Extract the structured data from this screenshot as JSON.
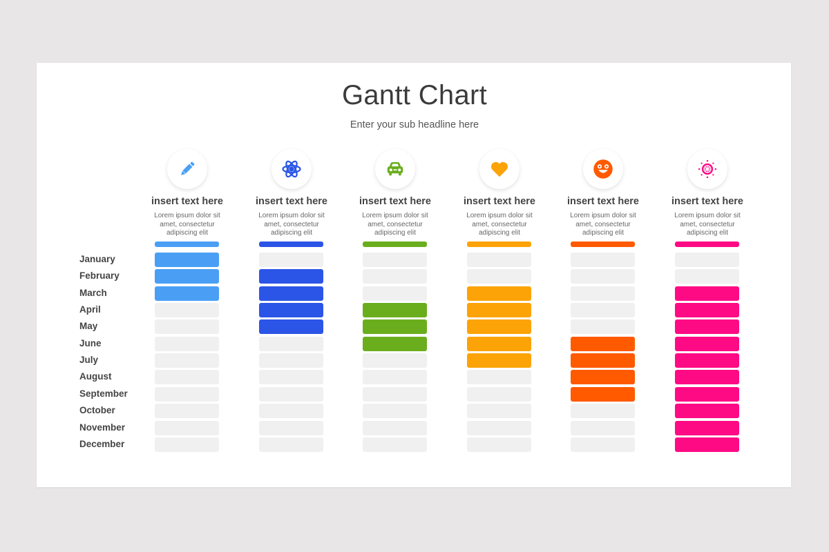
{
  "header": {
    "title": "Gantt Chart",
    "subtitle": "Enter your sub headline here"
  },
  "months": [
    "January",
    "February",
    "March",
    "April",
    "May",
    "June",
    "July",
    "August",
    "September",
    "October",
    "November",
    "December"
  ],
  "tasks": [
    {
      "icon": "pencil-icon",
      "title": "insert text here",
      "desc": [
        "Lorem ipsum dolor sit",
        "amet, consectetur",
        "adipiscing elit"
      ],
      "color": "#4a9ff5",
      "start": 0,
      "end": 2
    },
    {
      "icon": "atom-icon",
      "title": "insert text here",
      "desc": [
        "Lorem ipsum dolor sit",
        "amet, consectetur",
        "adipiscing elit"
      ],
      "color": "#2b55e6",
      "start": 1,
      "end": 4
    },
    {
      "icon": "car-icon",
      "title": "insert text here",
      "desc": [
        "Lorem ipsum dolor sit",
        "amet, consectetur",
        "adipiscing elit"
      ],
      "color": "#6aae1e",
      "start": 3,
      "end": 5
    },
    {
      "icon": "heart-icon",
      "title": "insert text here",
      "desc": [
        "Lorem ipsum dolor sit",
        "amet, consectetur",
        "adipiscing elit"
      ],
      "color": "#fca308",
      "start": 2,
      "end": 6
    },
    {
      "icon": "smiley-icon",
      "title": "insert text here",
      "desc": [
        "Lorem ipsum dolor sit",
        "amet, consectetur",
        "adipiscing elit"
      ],
      "color": "#ff5a00",
      "start": 5,
      "end": 8
    },
    {
      "icon": "ship-wheel-icon",
      "title": "insert text here",
      "desc": [
        "Lorem ipsum dolor sit",
        "amet, consectetur",
        "adipiscing elit"
      ],
      "color": "#ff0a85",
      "start": 2,
      "end": 11
    }
  ],
  "colors": {
    "empty_cell": "#f0f0f0",
    "background": "#e8e6e7",
    "slide": "#ffffff"
  },
  "chart_data": {
    "type": "bar",
    "subtype": "gantt",
    "title": "Gantt Chart",
    "subtitle": "Enter your sub headline here",
    "categories": [
      "January",
      "February",
      "March",
      "April",
      "May",
      "June",
      "July",
      "August",
      "September",
      "October",
      "November",
      "December"
    ],
    "series": [
      {
        "name": "insert text here (1)",
        "color": "#4a9ff5",
        "start": "January",
        "end": "March",
        "active": [
          1,
          1,
          1,
          0,
          0,
          0,
          0,
          0,
          0,
          0,
          0,
          0
        ]
      },
      {
        "name": "insert text here (2)",
        "color": "#2b55e6",
        "start": "February",
        "end": "May",
        "active": [
          0,
          1,
          1,
          1,
          1,
          0,
          0,
          0,
          0,
          0,
          0,
          0
        ]
      },
      {
        "name": "insert text here (3)",
        "color": "#6aae1e",
        "start": "April",
        "end": "June",
        "active": [
          0,
          0,
          0,
          1,
          1,
          1,
          0,
          0,
          0,
          0,
          0,
          0
        ]
      },
      {
        "name": "insert text here (4)",
        "color": "#fca308",
        "start": "March",
        "end": "July",
        "active": [
          0,
          0,
          1,
          1,
          1,
          1,
          1,
          0,
          0,
          0,
          0,
          0
        ]
      },
      {
        "name": "insert text here (5)",
        "color": "#ff5a00",
        "start": "June",
        "end": "September",
        "active": [
          0,
          0,
          0,
          0,
          0,
          1,
          1,
          1,
          1,
          0,
          0,
          0
        ]
      },
      {
        "name": "insert text here (6)",
        "color": "#ff0a85",
        "start": "March",
        "end": "December",
        "active": [
          0,
          0,
          1,
          1,
          1,
          1,
          1,
          1,
          1,
          1,
          1,
          1
        ]
      }
    ],
    "xlabel": "",
    "ylabel": "",
    "legend": "column headers above bars",
    "grid": false
  }
}
